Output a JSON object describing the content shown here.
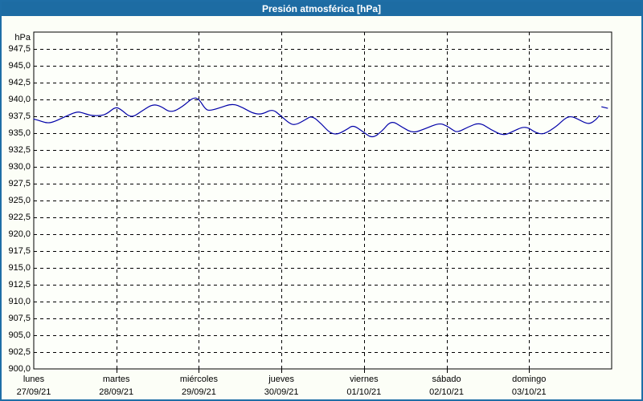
{
  "header": {
    "title": "Presión atmosférica [hPa]"
  },
  "colors": {
    "titlebar_bg": "#1d6ca3",
    "frame_border": "#1e6ea6",
    "background": "#fcfef7",
    "plot_bg": "#fdfffa",
    "grid": "#000000",
    "text": "#000000",
    "line": "#0000a8"
  },
  "chart_data": {
    "type": "line",
    "title": "Presión atmosférica [hPa]",
    "y_unit": "hPa",
    "ylim": [
      900,
      950
    ],
    "ytick_step": 2.5,
    "ytick_labels": [
      "947,5",
      "945,0",
      "942,5",
      "940,0",
      "937,5",
      "935,0",
      "932,5",
      "930,0",
      "927,5",
      "925,0",
      "922,5",
      "920,0",
      "917,5",
      "915,0",
      "912,5",
      "910,0",
      "907,5",
      "905,0",
      "902,5",
      "900,0"
    ],
    "x_categories": [
      {
        "day": "lunes",
        "date": "27/09/21"
      },
      {
        "day": "martes",
        "date": "28/09/21"
      },
      {
        "day": "miércoles",
        "date": "29/09/21"
      },
      {
        "day": "jueves",
        "date": "30/09/21"
      },
      {
        "day": "viernes",
        "date": "01/10/21"
      },
      {
        "day": "sábado",
        "date": "02/10/21"
      },
      {
        "day": "domingo",
        "date": "03/10/21"
      }
    ],
    "grid": "dashed",
    "legend": "none",
    "series": [
      {
        "name": "Presión atmosférica",
        "color": "#0000a8",
        "x_unit": "days_from_start",
        "segments": [
          [
            [
              0.0,
              937.1
            ],
            [
              0.06,
              936.9
            ],
            [
              0.15,
              936.5
            ],
            [
              0.23,
              936.6
            ],
            [
              0.39,
              937.5
            ],
            [
              0.52,
              938.2
            ],
            [
              0.6,
              938.0
            ],
            [
              0.69,
              937.6
            ],
            [
              0.82,
              937.6
            ],
            [
              0.89,
              937.9
            ],
            [
              0.99,
              938.9
            ],
            [
              1.06,
              938.5
            ],
            [
              1.18,
              937.2
            ],
            [
              1.31,
              938.3
            ],
            [
              1.44,
              939.3
            ],
            [
              1.54,
              939.0
            ],
            [
              1.66,
              938.0
            ],
            [
              1.8,
              938.9
            ],
            [
              1.93,
              940.3
            ],
            [
              2.0,
              940.1
            ],
            [
              2.07,
              938.7
            ],
            [
              2.12,
              938.3
            ],
            [
              2.24,
              938.7
            ],
            [
              2.41,
              939.4
            ],
            [
              2.53,
              938.8
            ],
            [
              2.66,
              937.9
            ],
            [
              2.77,
              937.8
            ],
            [
              2.89,
              938.6
            ],
            [
              2.99,
              937.6
            ],
            [
              3.1,
              936.4
            ],
            [
              3.17,
              936.2
            ],
            [
              3.29,
              937.0
            ],
            [
              3.37,
              937.6
            ],
            [
              3.49,
              936.3
            ],
            [
              3.59,
              935.0
            ],
            [
              3.68,
              934.8
            ],
            [
              3.8,
              935.6
            ],
            [
              3.87,
              936.2
            ],
            [
              3.99,
              935.2
            ],
            [
              4.1,
              934.2
            ],
            [
              4.22,
              935.3
            ],
            [
              4.33,
              936.9
            ],
            [
              4.46,
              935.9
            ],
            [
              4.59,
              935.0
            ],
            [
              4.73,
              935.6
            ],
            [
              4.91,
              936.5
            ],
            [
              5.0,
              936.1
            ],
            [
              5.07,
              935.5
            ],
            [
              5.13,
              935.1
            ],
            [
              5.26,
              935.9
            ],
            [
              5.4,
              936.6
            ],
            [
              5.54,
              935.5
            ],
            [
              5.69,
              934.6
            ],
            [
              5.81,
              935.3
            ],
            [
              5.92,
              935.9
            ],
            [
              5.99,
              935.8
            ],
            [
              6.05,
              935.3
            ],
            [
              6.12,
              934.9
            ],
            [
              6.19,
              934.9
            ],
            [
              6.32,
              935.9
            ],
            [
              6.4,
              936.8
            ],
            [
              6.45,
              937.3
            ],
            [
              6.51,
              937.5
            ],
            [
              6.59,
              937.1
            ],
            [
              6.68,
              936.5
            ],
            [
              6.74,
              936.4
            ],
            [
              6.81,
              937.0
            ],
            [
              6.85,
              937.6
            ]
          ],
          [
            [
              6.88,
              938.9
            ],
            [
              6.95,
              938.7
            ]
          ]
        ]
      }
    ]
  }
}
